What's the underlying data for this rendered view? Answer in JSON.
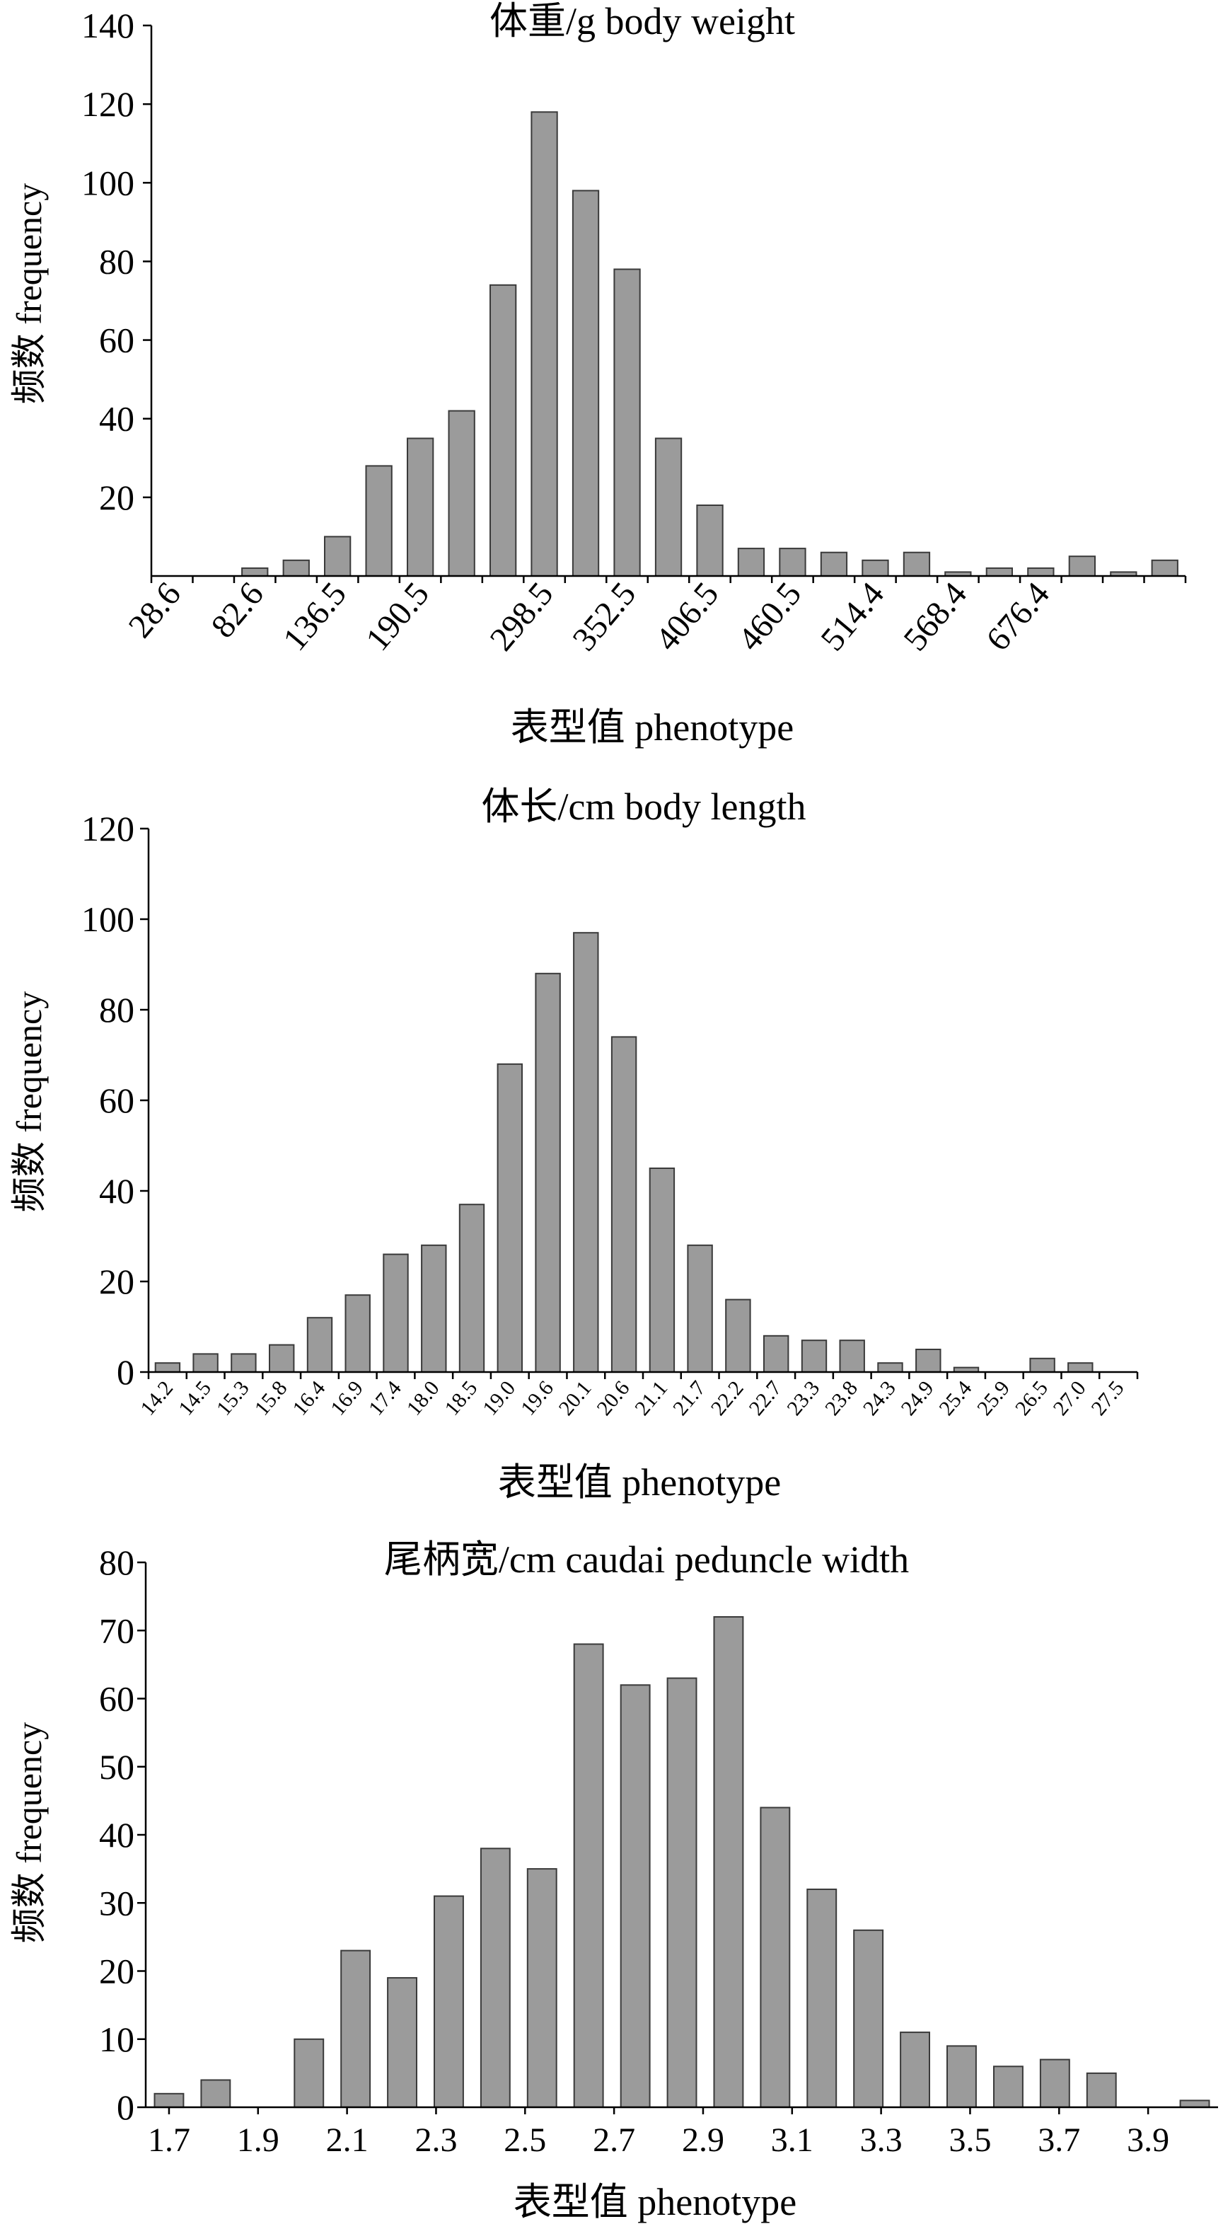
{
  "figure": {
    "charts": [
      {
        "title": "体重/g body weight",
        "ylabel": "频数 frequency",
        "xlabel": "表型值 phenotype"
      },
      {
        "title": "体长/cm body length",
        "ylabel": "频数 frequency",
        "xlabel": "表型值 phenotype"
      },
      {
        "title": "尾柄宽/cm caudai peduncle width",
        "ylabel": "频数 frequency",
        "xlabel": "表型值 phenotype"
      }
    ]
  },
  "chart_data": [
    {
      "type": "bar",
      "title": "体重/g body weight",
      "xlabel": "表型值 phenotype",
      "ylabel": "频数 frequency",
      "ylim": [
        0,
        140
      ],
      "yticks": [
        20,
        40,
        60,
        80,
        100,
        120,
        140
      ],
      "grid": false,
      "tick_labels": [
        "28.6",
        "82.6",
        "136.5",
        "190.5",
        "298.5",
        "352.5",
        "406.5",
        "460.5",
        "514.4",
        "568.4",
        "676.4"
      ],
      "tick_label_bins": [
        0,
        2,
        4,
        6,
        9,
        11,
        13,
        15,
        17,
        19,
        21
      ],
      "values": [
        0,
        0,
        2,
        4,
        10,
        28,
        35,
        42,
        74,
        118,
        98,
        78,
        35,
        18,
        7,
        7,
        6,
        4,
        6,
        1,
        2,
        2,
        5,
        1,
        4
      ]
    },
    {
      "type": "bar",
      "title": "体长/cm body length",
      "xlabel": "表型值 phenotype",
      "ylabel": "频数 frequency",
      "ylim": [
        0,
        120
      ],
      "yticks": [
        0,
        20,
        40,
        60,
        80,
        100,
        120
      ],
      "grid": false,
      "categories": [
        "14.2",
        "14.5",
        "15.3",
        "15.8",
        "16.4",
        "16.9",
        "17.4",
        "18.0",
        "18.5",
        "19.0",
        "19.6",
        "20.1",
        "20.6",
        "21.1",
        "21.7",
        "22.2",
        "22.7",
        "23.3",
        "23.8",
        "24.3",
        "24.9",
        "25.4",
        "25.9",
        "26.5",
        "27.0",
        "27.5"
      ],
      "values": [
        2,
        4,
        4,
        6,
        12,
        17,
        26,
        28,
        37,
        68,
        88,
        97,
        74,
        45,
        28,
        16,
        8,
        7,
        7,
        2,
        5,
        1,
        0,
        3,
        2,
        0
      ]
    },
    {
      "type": "bar",
      "title": "尾柄宽/cm caudai peduncle width",
      "xlabel": "表型值 phenotype",
      "ylabel": "频数 frequency",
      "ylim": [
        0,
        80
      ],
      "yticks": [
        0,
        10,
        20,
        30,
        40,
        50,
        60,
        70,
        80
      ],
      "grid": false,
      "tick_labels": [
        "1.7",
        "1.9",
        "2.1",
        "2.3",
        "2.5",
        "2.7",
        "2.9",
        "3.1",
        "3.3",
        "3.5",
        "3.7",
        "3.9"
      ],
      "values": [
        2,
        4,
        0,
        10,
        23,
        19,
        31,
        38,
        35,
        68,
        62,
        63,
        72,
        44,
        32,
        26,
        11,
        9,
        6,
        7,
        5,
        0,
        1
      ]
    }
  ]
}
